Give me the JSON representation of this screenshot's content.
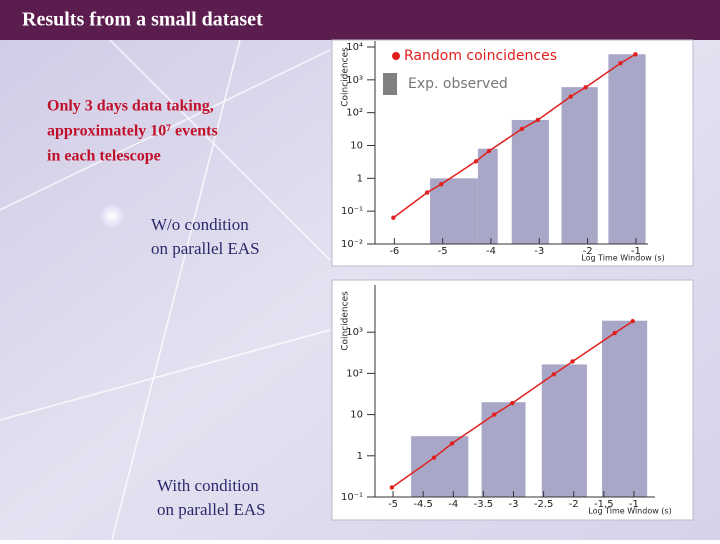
{
  "slide": {
    "title": "Results from a small dataset",
    "note": [
      "Only 3 days data taking,",
      "approximately 10⁷ events",
      "in each telescope"
    ],
    "captions": [
      [
        "W/o condition",
        "on parallel EAS"
      ],
      [
        "With condition",
        "on parallel EAS"
      ]
    ]
  },
  "chart_data": [
    {
      "type": "histogram",
      "xlabel": "Log Time Window (s)",
      "ylabel": "Coincidences",
      "log_y": true,
      "xlim": [
        -6.4,
        -0.75
      ],
      "ylim": [
        0.01,
        10000
      ],
      "xticks": [
        -6,
        -5,
        -4,
        -3,
        -2,
        -1
      ],
      "yticks": [
        {
          "value": 0.01,
          "label": "10⁻²"
        },
        {
          "value": 0.1,
          "label": "10⁻¹"
        },
        1,
        10,
        {
          "value": 100,
          "label": "10²"
        },
        {
          "value": 1000,
          "label": "10³"
        },
        {
          "value": 10000,
          "label": "10⁴"
        }
      ],
      "name": "Exp. observed",
      "color": "#a9a7c7",
      "bins": [
        -5.26,
        -4.6,
        -4.27,
        -3.86,
        -3.57,
        -2.8,
        -2.54,
        -1.79,
        -1.57,
        -0.8
      ],
      "values": [
        1,
        1,
        8,
        0,
        60,
        0,
        600,
        0,
        6000
      ],
      "series": [
        {
          "name": "Random coincidences",
          "color": "#e0201e",
          "x": [
            -6.02,
            -5.32,
            -5.03,
            -4.31,
            -4.04,
            -3.36,
            -3.03,
            -2.35,
            -2.04,
            -1.32,
            -1.01
          ],
          "values": [
            0.063,
            0.37,
            0.66,
            3.3,
            6.8,
            32,
            60,
            310,
            590,
            3200,
            6000
          ]
        }
      ]
    },
    {
      "type": "histogram",
      "xlabel": "Log Time Window (s)",
      "ylabel": "Coincidences",
      "log_y": true,
      "xlim": [
        -5.3,
        -0.65
      ],
      "ylim": [
        0.1,
        10000
      ],
      "xticks": [
        -5,
        -4.5,
        -4,
        -3.5,
        -3,
        -2.5,
        -2,
        -1.5,
        -1
      ],
      "yticks": [
        {
          "value": 0.1,
          "label": "10⁻¹"
        },
        1,
        10,
        {
          "value": 100,
          "label": "10²"
        },
        {
          "value": 1000,
          "label": "10³"
        }
      ],
      "color": "#a9a7c7",
      "bins": [
        -4.7,
        -3.75,
        -3.53,
        -2.8,
        -2.53,
        -1.78,
        -1.53,
        -0.78
      ],
      "values": [
        3,
        0,
        20,
        0,
        165,
        0,
        1900
      ],
      "series": [
        {
          "color": "#e0201e",
          "x": [
            -5.02,
            -4.32,
            -4.02,
            -3.32,
            -3.02,
            -2.33,
            -2.02,
            -1.32,
            -1.02
          ],
          "values": [
            0.17,
            0.9,
            2,
            10,
            19,
            95,
            195,
            950,
            1850
          ]
        }
      ]
    }
  ]
}
